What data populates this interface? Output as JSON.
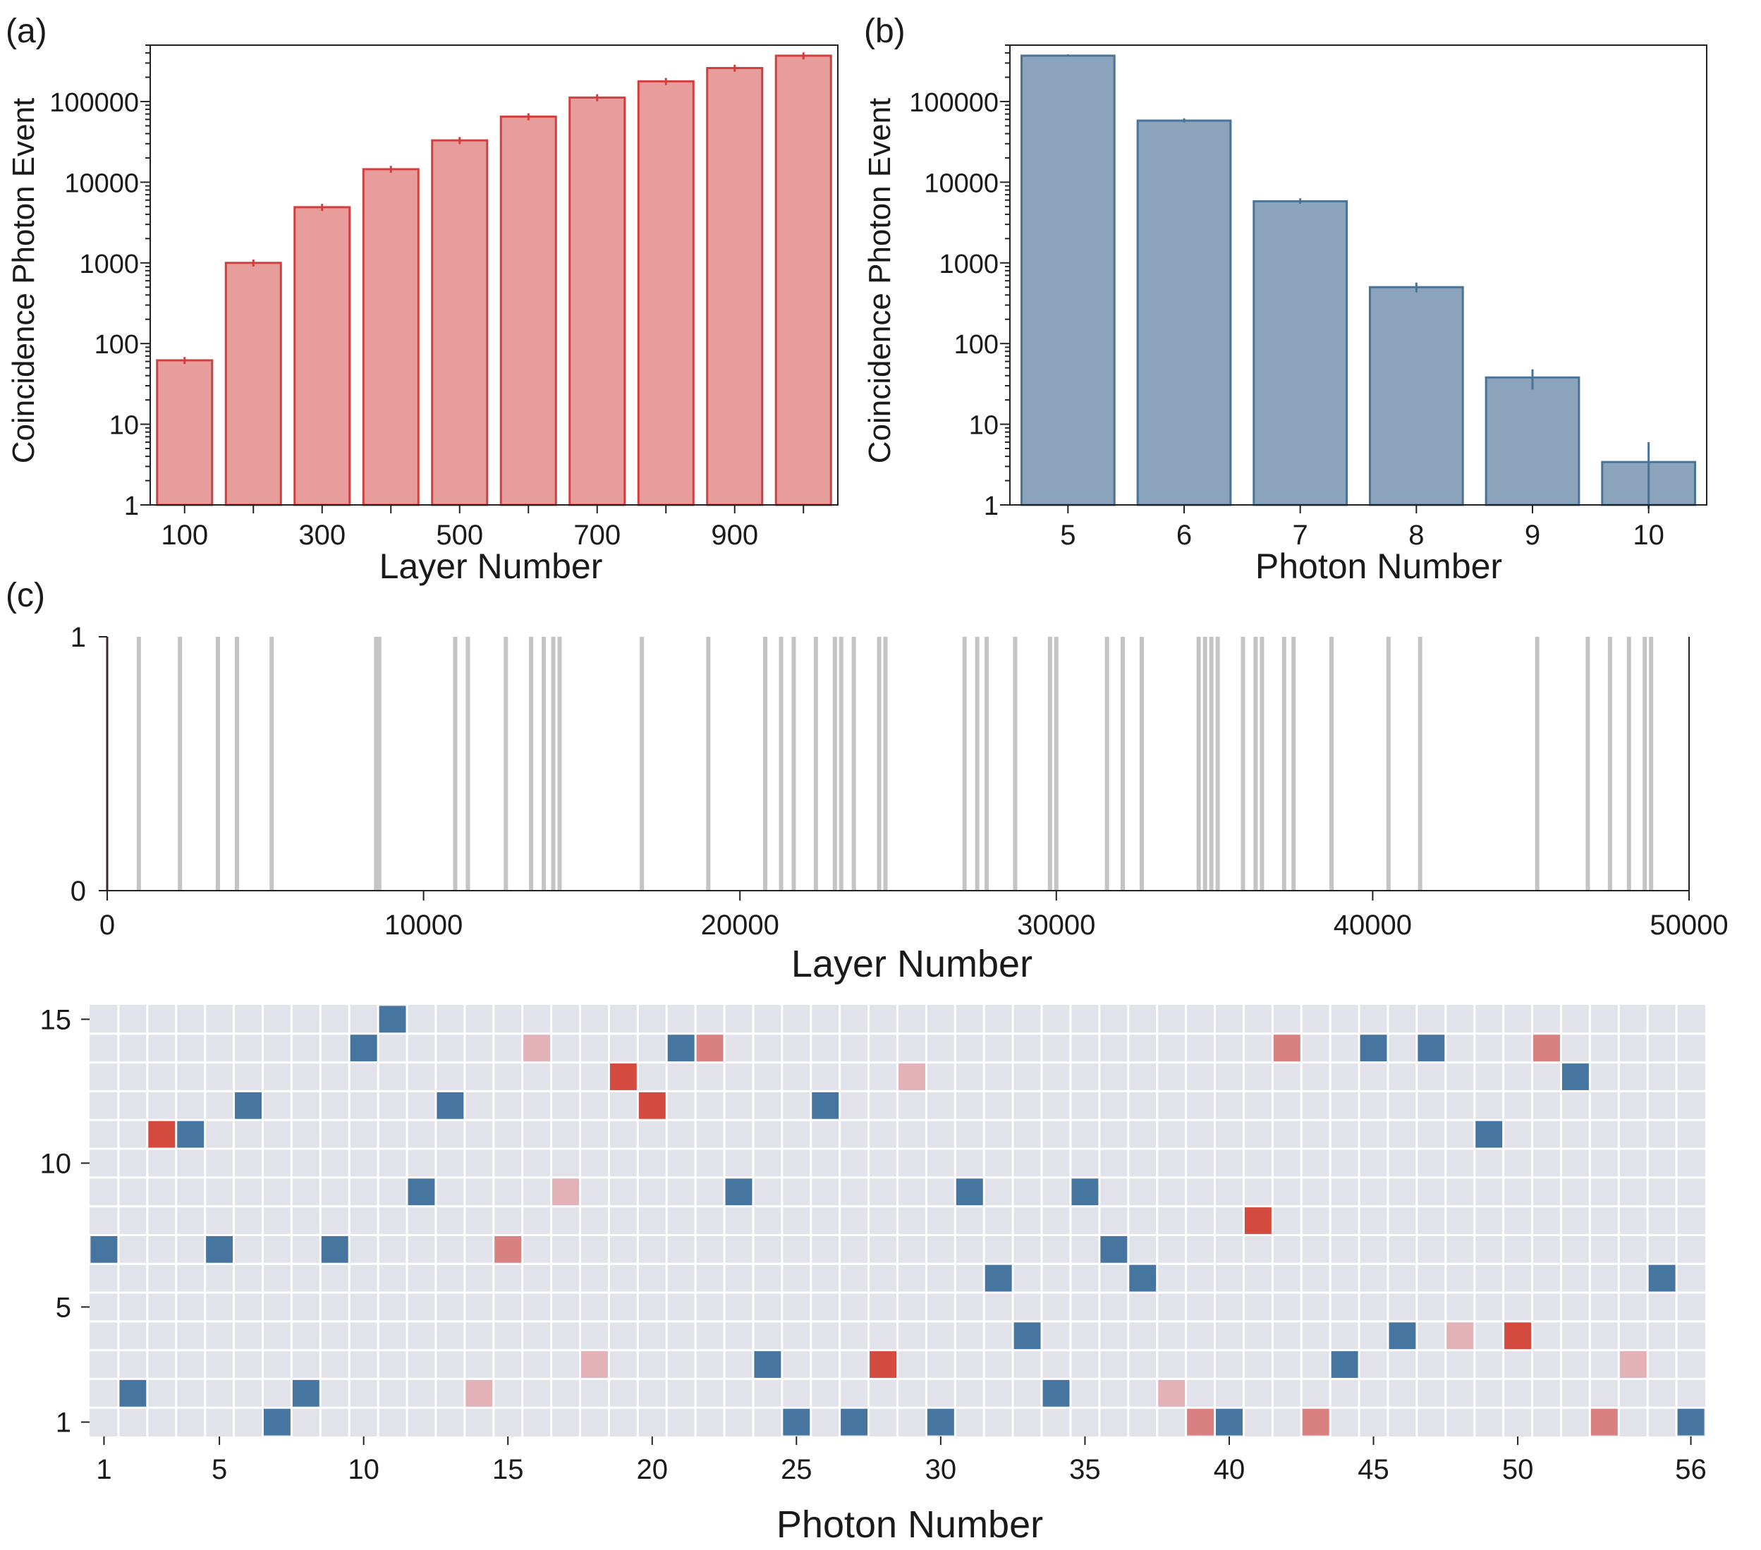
{
  "panel_labels": {
    "a": "(a)",
    "b": "(b)",
    "c": "(c)"
  },
  "colors": {
    "red_fill": "#e89d9d",
    "red_edge": "#d23f3f",
    "blue_fill": "#8ba3bb",
    "blue_edge": "#4a7396",
    "gray_line": "#c4c4c4",
    "grid_bg": "#e2e2ea",
    "heat_blue": "#4676a0",
    "heat_red": "#d44a3e",
    "heat_mid": "#d98080",
    "heat_light": "#e2b2b8"
  },
  "chart_data": [
    {
      "id": "a",
      "type": "bar",
      "title": "",
      "xlabel": "Layer Number",
      "ylabel": "Coincidence Photon Event",
      "yscale": "log",
      "ylim": [
        1,
        500000
      ],
      "yticks": [
        1,
        10,
        100,
        1000,
        10000,
        100000
      ],
      "ytick_labels": [
        "1",
        "10",
        "100",
        "1000",
        "10000",
        "100000"
      ],
      "categories": [
        100,
        200,
        300,
        400,
        500,
        600,
        700,
        800,
        900,
        1000
      ],
      "xtick_labels": [
        "100",
        "",
        "300",
        "",
        "500",
        "",
        "700",
        "",
        "900",
        ""
      ],
      "values": [
        62,
        1000,
        4900,
        14500,
        33000,
        65000,
        112000,
        178000,
        260000,
        370000
      ]
    },
    {
      "id": "b",
      "type": "bar",
      "title": "",
      "xlabel": "Photon Number",
      "ylabel": "Coincidence Photon Event",
      "yscale": "log",
      "ylim": [
        1,
        500000
      ],
      "yticks": [
        1,
        10,
        100,
        1000,
        10000,
        100000
      ],
      "ytick_labels": [
        "1",
        "10",
        "100",
        "1000",
        "10000",
        "100000"
      ],
      "categories": [
        5,
        6,
        7,
        8,
        9,
        10
      ],
      "xtick_labels": [
        "5",
        "6",
        "7",
        "8",
        "9",
        "10"
      ],
      "values": [
        370000,
        58000,
        5800,
        500,
        38,
        3.4
      ],
      "errors": [
        [
          360000,
          385000
        ],
        [
          55000,
          62000
        ],
        [
          5400,
          6300
        ],
        [
          430,
          570
        ],
        [
          27,
          48
        ],
        [
          0.9,
          6
        ]
      ]
    },
    {
      "id": "c",
      "type": "line",
      "title": "",
      "xlabel": "Layer Number",
      "ylabel": "",
      "xlim": [
        0,
        50000
      ],
      "ylim": [
        0,
        1
      ],
      "xticks": [
        0,
        10000,
        20000,
        30000,
        40000,
        50000
      ],
      "xtick_labels": [
        "0",
        "10000",
        "20000",
        "30000",
        "40000",
        "50000"
      ],
      "ytick_labels": [
        "0",
        "1"
      ],
      "events_x": [
        1000,
        2300,
        3500,
        4100,
        5200,
        8500,
        8600,
        11000,
        11400,
        12600,
        13400,
        13800,
        14100,
        14300,
        16900,
        19000,
        20800,
        21300,
        21700,
        22400,
        23000,
        23200,
        23600,
        24400,
        24600,
        27100,
        27500,
        27800,
        28700,
        29800,
        30000,
        31600,
        32100,
        32700,
        34500,
        34700,
        34900,
        35100,
        35900,
        36300,
        36500,
        37200,
        37500,
        38700,
        40500,
        41500,
        45200,
        46800,
        47500,
        48100,
        48600,
        48800
      ]
    },
    {
      "id": "d",
      "type": "heatmap",
      "title": "",
      "xlabel": "Photon Number",
      "ylabel": "",
      "ncols": 56,
      "nrows": 15,
      "xticks": [
        1,
        5,
        10,
        15,
        20,
        25,
        30,
        35,
        40,
        45,
        50,
        56
      ],
      "xtick_labels": [
        "1",
        "5",
        "10",
        "15",
        "20",
        "25",
        "30",
        "35",
        "40",
        "45",
        "50",
        "56"
      ],
      "yticks": [
        1,
        5,
        10,
        15
      ],
      "ytick_labels": [
        "1",
        "5",
        "10",
        "15"
      ],
      "cells": [
        [
          1,
          7,
          "b"
        ],
        [
          2,
          2,
          "b"
        ],
        [
          3,
          11,
          "r"
        ],
        [
          4,
          11,
          "b"
        ],
        [
          5,
          7,
          "b"
        ],
        [
          6,
          12,
          "b"
        ],
        [
          7,
          1,
          "b"
        ],
        [
          8,
          2,
          "b"
        ],
        [
          9,
          7,
          "b"
        ],
        [
          10,
          14,
          "b"
        ],
        [
          11,
          15,
          "b"
        ],
        [
          12,
          9,
          "b"
        ],
        [
          13,
          12,
          "b"
        ],
        [
          14,
          2,
          "l"
        ],
        [
          15,
          7,
          "m"
        ],
        [
          16,
          14,
          "l"
        ],
        [
          17,
          9,
          "l"
        ],
        [
          18,
          3,
          "l"
        ],
        [
          19,
          13,
          "r"
        ],
        [
          20,
          12,
          "r"
        ],
        [
          21,
          14,
          "b"
        ],
        [
          22,
          14,
          "m"
        ],
        [
          23,
          9,
          "b"
        ],
        [
          24,
          3,
          "b"
        ],
        [
          25,
          1,
          "b"
        ],
        [
          26,
          12,
          "b"
        ],
        [
          27,
          1,
          "b"
        ],
        [
          28,
          3,
          "r"
        ],
        [
          29,
          13,
          "l"
        ],
        [
          30,
          1,
          "b"
        ],
        [
          31,
          9,
          "b"
        ],
        [
          32,
          6,
          "b"
        ],
        [
          33,
          4,
          "b"
        ],
        [
          34,
          2,
          "b"
        ],
        [
          35,
          9,
          "b"
        ],
        [
          36,
          7,
          "b"
        ],
        [
          37,
          6,
          "b"
        ],
        [
          38,
          2,
          "l"
        ],
        [
          39,
          1,
          "m"
        ],
        [
          40,
          1,
          "b"
        ],
        [
          41,
          8,
          "r"
        ],
        [
          42,
          14,
          "m"
        ],
        [
          43,
          1,
          "m"
        ],
        [
          44,
          3,
          "b"
        ],
        [
          45,
          14,
          "b"
        ],
        [
          46,
          4,
          "b"
        ],
        [
          47,
          14,
          "b"
        ],
        [
          48,
          4,
          "l"
        ],
        [
          49,
          11,
          "b"
        ],
        [
          50,
          4,
          "r"
        ],
        [
          51,
          14,
          "m"
        ],
        [
          52,
          13,
          "b"
        ],
        [
          53,
          1,
          "m"
        ],
        [
          54,
          3,
          "l"
        ],
        [
          55,
          6,
          "b"
        ],
        [
          56,
          1,
          "b"
        ]
      ]
    }
  ]
}
